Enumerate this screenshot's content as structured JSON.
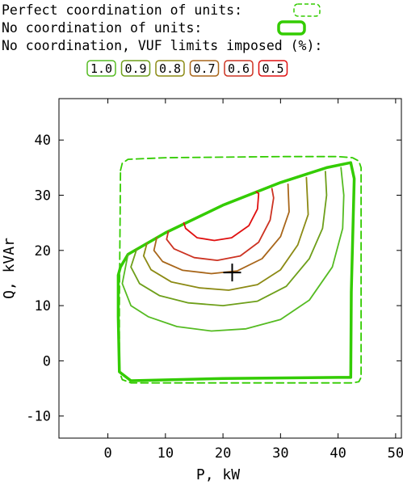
{
  "chart_data": {
    "type": "line",
    "xlabel": "P, kW",
    "ylabel": "Q, kVAr",
    "xlim": [
      -8.5,
      51
    ],
    "ylim": [
      -14,
      47.5
    ],
    "xticks": [
      0,
      10,
      20,
      30,
      40,
      50
    ],
    "yticks": [
      -10,
      0,
      10,
      20,
      30,
      40
    ],
    "grid": false,
    "legend": {
      "placement": "top-left",
      "perfect_label": "Perfect coordination of units:",
      "nocoord_label": "No coordination of units:",
      "vuf_label": "No coordination, VUF limits imposed (%):",
      "vuf_values": [
        "1.0",
        "0.9",
        "0.8",
        "0.7",
        "0.6",
        "0.5"
      ]
    },
    "series": [
      {
        "name": "Perfect coordination of units",
        "style": "dashed",
        "color": "#33cc00",
        "points": [
          [
            2.2,
            34.5
          ],
          [
            2.5,
            35.8
          ],
          [
            3.5,
            36.5
          ],
          [
            10,
            36.8
          ],
          [
            20,
            36.9
          ],
          [
            30,
            37.0
          ],
          [
            40,
            37.0
          ],
          [
            42.5,
            36.8
          ],
          [
            43.6,
            36.2
          ],
          [
            44,
            35.0
          ],
          [
            44,
            -3.0
          ],
          [
            43.6,
            -3.8
          ],
          [
            42.5,
            -4.0
          ],
          [
            20,
            -4.0
          ],
          [
            4,
            -4.0
          ],
          [
            2.5,
            -3.4
          ],
          [
            2.0,
            -2.0
          ],
          [
            2.0,
            10
          ],
          [
            2.2,
            34.5
          ]
        ]
      },
      {
        "name": "No coordination of units",
        "style": "solid-thick",
        "color": "#33cc00",
        "points": [
          [
            2.2,
            17.0
          ],
          [
            3.5,
            19.3
          ],
          [
            10,
            23.2
          ],
          [
            20,
            28.2
          ],
          [
            30,
            32.3
          ],
          [
            38,
            35.0
          ],
          [
            42.2,
            35.9
          ],
          [
            42.8,
            33
          ],
          [
            42.3,
            12.5
          ],
          [
            42.2,
            -3.0
          ],
          [
            40,
            -3.0
          ],
          [
            20,
            -3.2
          ],
          [
            4,
            -3.6
          ],
          [
            2.0,
            -2.0
          ],
          [
            1.8,
            8
          ],
          [
            1.8,
            15.5
          ],
          [
            2.2,
            17.0
          ]
        ]
      },
      {
        "name": "1.0",
        "color": "#55bb22",
        "points": [
          [
            3.5,
            19.3
          ],
          [
            2.5,
            14
          ],
          [
            4,
            10
          ],
          [
            7,
            8
          ],
          [
            12,
            6.2
          ],
          [
            18,
            5.4
          ],
          [
            24,
            5.8
          ],
          [
            30,
            7.5
          ],
          [
            35,
            11
          ],
          [
            39,
            17
          ],
          [
            40.8,
            24
          ],
          [
            41,
            30
          ],
          [
            40.5,
            35.0
          ]
        ]
      },
      {
        "name": "0.9",
        "color": "#6e9f1a",
        "points": [
          [
            5,
            20.2
          ],
          [
            4,
            17
          ],
          [
            5.5,
            14
          ],
          [
            9,
            11.8
          ],
          [
            14,
            10.5
          ],
          [
            20,
            10.0
          ],
          [
            26,
            10.8
          ],
          [
            31,
            13.5
          ],
          [
            35,
            18.5
          ],
          [
            37.3,
            24
          ],
          [
            38,
            30
          ],
          [
            37.8,
            34.3
          ]
        ]
      },
      {
        "name": "0.8",
        "color": "#8c8a14",
        "points": [
          [
            6.8,
            21.3
          ],
          [
            6.2,
            19
          ],
          [
            7.5,
            16.5
          ],
          [
            11,
            14.3
          ],
          [
            16,
            13.2
          ],
          [
            21,
            12.8
          ],
          [
            26,
            13.8
          ],
          [
            30,
            16.5
          ],
          [
            33,
            21
          ],
          [
            34.8,
            26.5
          ],
          [
            34.5,
            33.2
          ]
        ]
      },
      {
        "name": "0.7",
        "color": "#a8661a",
        "points": [
          [
            8.5,
            22.3
          ],
          [
            8,
            20
          ],
          [
            9.5,
            18
          ],
          [
            13,
            16.4
          ],
          [
            18,
            15.8
          ],
          [
            22.5,
            16.3
          ],
          [
            26.8,
            18.5
          ],
          [
            30,
            22.5
          ],
          [
            31.5,
            27
          ],
          [
            31.3,
            32.0
          ]
        ]
      },
      {
        "name": "0.6",
        "color": "#cc3322",
        "points": [
          [
            10.5,
            23.4
          ],
          [
            10.2,
            22
          ],
          [
            11.5,
            20.3
          ],
          [
            15,
            18.7
          ],
          [
            19,
            18.2
          ],
          [
            23,
            19
          ],
          [
            26.2,
            21.5
          ],
          [
            28.2,
            25.5
          ],
          [
            28.8,
            29.5
          ],
          [
            28.5,
            31.2
          ]
        ]
      },
      {
        "name": "0.5",
        "color": "#e01010",
        "points": [
          [
            13.2,
            25.0
          ],
          [
            13.5,
            24
          ],
          [
            15.5,
            22.3
          ],
          [
            18.5,
            21.8
          ],
          [
            21.5,
            22.3
          ],
          [
            24.5,
            24.5
          ],
          [
            26,
            27.5
          ],
          [
            26.2,
            30.3
          ],
          [
            25.8,
            30.6
          ]
        ]
      }
    ],
    "markers": [
      {
        "shape": "plus",
        "x": 21.6,
        "y": 16.0,
        "color": "#000000"
      }
    ]
  },
  "colors": {
    "green": "#33cc00",
    "swatches": [
      "#55bb22",
      "#6e9f1a",
      "#8c8a14",
      "#a8661a",
      "#cc3322",
      "#e01010"
    ]
  }
}
